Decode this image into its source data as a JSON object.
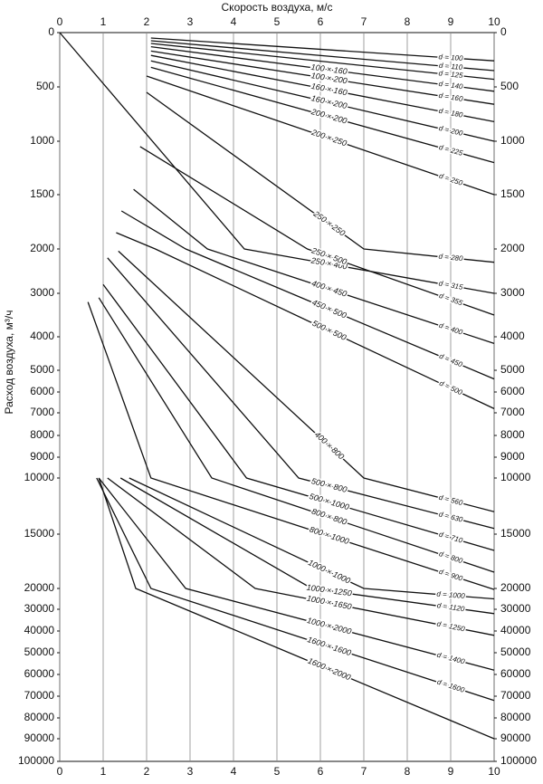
{
  "chart_data": {
    "type": "nomogram",
    "x_label": "Скорость воздуха, м/с",
    "y_label": "Расход воздуха, м³/ч",
    "xlim": [
      0,
      10
    ],
    "xticks": [
      0,
      1,
      2,
      3,
      4,
      5,
      6,
      7,
      8,
      9,
      10
    ],
    "ylim": [
      0,
      100000
    ],
    "yticks": [
      0,
      500,
      1000,
      1500,
      2000,
      3000,
      4000,
      5000,
      6000,
      7000,
      8000,
      9000,
      10000,
      15000,
      20000,
      30000,
      40000,
      50000,
      60000,
      70000,
      80000,
      90000,
      100000
    ],
    "grid": true,
    "color": "#111111",
    "lines": [
      {
        "d": "d = 100",
        "x": [
          2.1,
          10
        ],
        "y": [
          50,
          260
        ]
      },
      {
        "d": "d = 110",
        "x": [
          2.1,
          10
        ],
        "y": [
          75,
          350
        ]
      },
      {
        "d": "d = 125",
        "x": [
          2.1,
          10
        ],
        "y": [
          100,
          430
        ]
      },
      {
        "d": "d = 140",
        "rect": "100 × 160",
        "x": [
          2.1,
          10
        ],
        "y": [
          130,
          540
        ]
      },
      {
        "d": "d = 160",
        "rect": "100 × 200",
        "x": [
          2.1,
          10
        ],
        "y": [
          170,
          660
        ]
      },
      {
        "d": "d = 180",
        "rect": "160 × 160",
        "x": [
          2.1,
          10
        ],
        "y": [
          210,
          820
        ]
      },
      {
        "d": "d = 200",
        "rect": "160 × 200",
        "x": [
          2.1,
          10
        ],
        "y": [
          260,
          1000
        ]
      },
      {
        "d": "d = 225",
        "rect": "200 × 200",
        "x": [
          2.1,
          10
        ],
        "y": [
          320,
          1200
        ]
      },
      {
        "d": "d = 250",
        "rect": "200 × 250",
        "x": [
          2.0,
          10
        ],
        "y": [
          400,
          1500
        ]
      },
      {
        "d": "d = 280",
        "rect": "250 × 250",
        "x": [
          2.0,
          7.0,
          10
        ],
        "y": [
          550,
          2000,
          2300
        ]
      },
      {
        "d": "d = 315",
        "rect": "250 × 400",
        "x": [
          0,
          4.25,
          10
        ],
        "y": [
          0,
          2000,
          3000
        ]
      },
      {
        "d": "d = 355",
        "rect": "250 × 500",
        "x": [
          1.85,
          5.7,
          10
        ],
        "y": [
          1050,
          2000,
          3500
        ]
      },
      {
        "d": "d = 400",
        "rect": "400 × 450",
        "x": [
          1.7,
          3.4,
          10
        ],
        "y": [
          1450,
          2000,
          4200
        ]
      },
      {
        "d": "d = 450",
        "rect": "450 × 500",
        "x": [
          1.42,
          2.9,
          10
        ],
        "y": [
          1650,
          2000,
          5400
        ]
      },
      {
        "d": "d = 500",
        "rect": "500 × 500",
        "x": [
          1.3,
          2.2,
          10
        ],
        "y": [
          1850,
          2000,
          6800
        ]
      },
      {
        "d": "d = 560",
        "rect": "400 × 800",
        "x": [
          1.35,
          7.0,
          10
        ],
        "y": [
          2050,
          10000,
          13000
        ]
      },
      {
        "d": "d = 630",
        "rect": "500 × 800",
        "x": [
          1.1,
          5.5,
          10
        ],
        "y": [
          2200,
          10000,
          14500
        ]
      },
      {
        "d": "d = 710",
        "rect": "500 × 1000",
        "x": [
          1.0,
          4.3,
          10
        ],
        "y": [
          2800,
          10000,
          16500
        ]
      },
      {
        "d": "d = 800",
        "rect": "800 × 800",
        "x": [
          0.9,
          3.5,
          10
        ],
        "y": [
          3100,
          10000,
          18500
        ]
      },
      {
        "d": "d = 900",
        "rect": "800 × 1000",
        "x": [
          0.65,
          2.1,
          10
        ],
        "y": [
          3200,
          10000,
          20500
        ]
      },
      {
        "d": "d = 1000",
        "rect": "1000 × 1000",
        "x": [
          1.6,
          7.0,
          10
        ],
        "y": [
          10000,
          20000,
          25000
        ]
      },
      {
        "d": "d = 1120",
        "rect": "1000 × 1250",
        "x": [
          1.4,
          5.8,
          10
        ],
        "y": [
          10000,
          20000,
          32000
        ]
      },
      {
        "d": "d = 1250",
        "rect": "1000 × 1650",
        "x": [
          1.1,
          4.5,
          10
        ],
        "y": [
          10000,
          20000,
          42000
        ]
      },
      {
        "d": "d = 1400",
        "rect": "1000 × 2000",
        "x": [
          0.9,
          2.9,
          10
        ],
        "y": [
          10000,
          20000,
          58000
        ]
      },
      {
        "d": "d = 1600",
        "rect": "1600 × 1600",
        "x": [
          0.85,
          2.1,
          10
        ],
        "y": [
          10000,
          20000,
          72000
        ]
      },
      {
        "rect": "1600 × 2000",
        "x": [
          0.9,
          1.75,
          10
        ],
        "y": [
          10000,
          20000,
          90000
        ]
      }
    ]
  }
}
